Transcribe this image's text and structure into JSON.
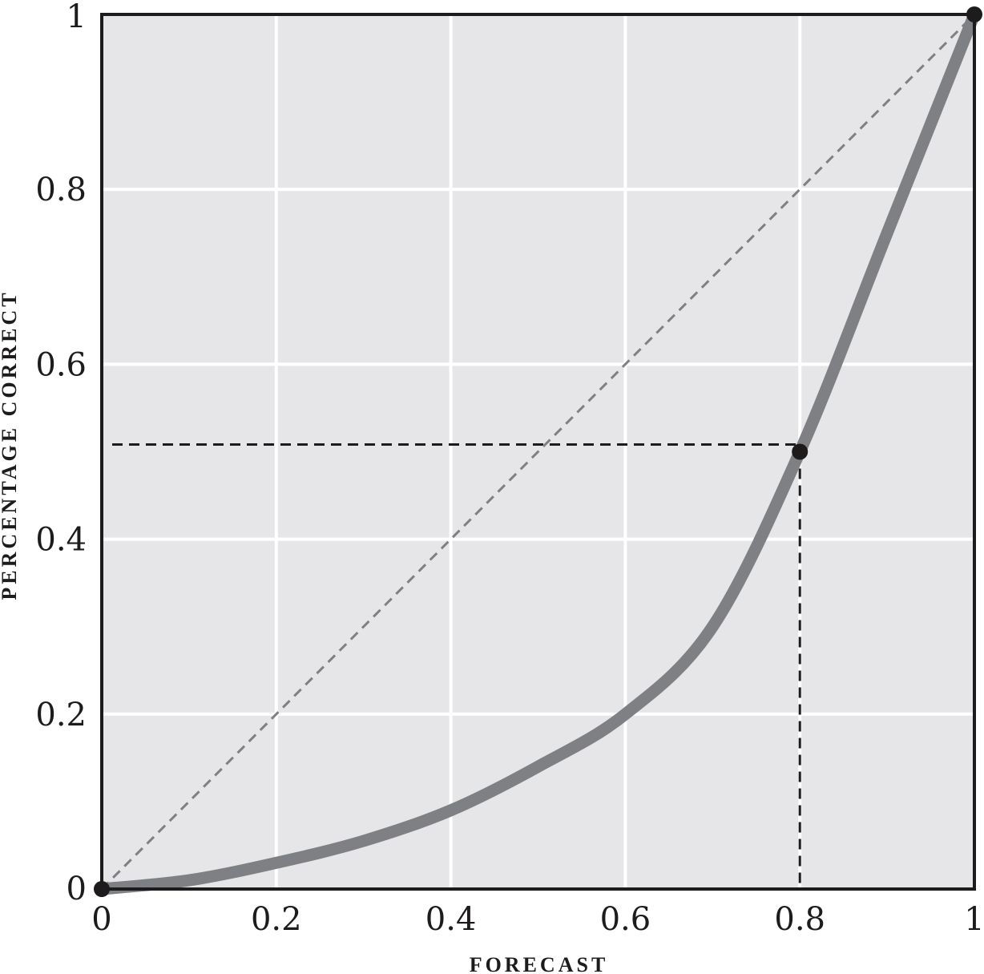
{
  "chart_data": {
    "type": "line",
    "xlabel": "FORECAST",
    "ylabel": "PERCENTAGE CORRECT",
    "xlim": [
      0,
      1
    ],
    "ylim": [
      0,
      1
    ],
    "grid": true,
    "x_ticks": [
      "0",
      "0.2",
      "0.4",
      "0.6",
      "0.8",
      "1"
    ],
    "y_ticks": [
      "0",
      "0.2",
      "0.4",
      "0.6",
      "0.8",
      "1"
    ],
    "series": [
      {
        "style": "solid-thick",
        "x": [
          0,
          0.1,
          0.2,
          0.3,
          0.4,
          0.5,
          0.6,
          0.7,
          0.8,
          0.9,
          1
        ],
        "y": [
          0,
          0.01,
          0.03,
          0.055,
          0.09,
          0.14,
          0.2,
          0.3,
          0.5,
          0.75,
          1
        ]
      },
      {
        "style": "dashed-diagonal",
        "x": [
          0,
          1
        ],
        "y": [
          0,
          1
        ]
      }
    ],
    "highlight_points": [
      {
        "x": 0,
        "y": 0
      },
      {
        "x": 0.8,
        "y": 0.5
      },
      {
        "x": 1,
        "y": 1
      }
    ],
    "reference_lines": {
      "x": 0.8,
      "y": 0.5
    },
    "colors": {
      "plot_background": "#e6e6e9",
      "grid": "#ffffff",
      "curve": "#7e8084",
      "diagonal": "#7e8084",
      "points": "#1d1b1c",
      "frame": "#1d1b1c"
    }
  }
}
